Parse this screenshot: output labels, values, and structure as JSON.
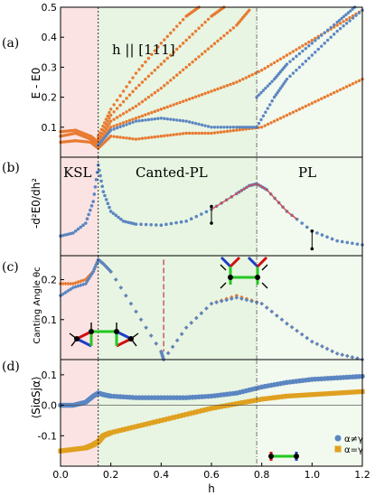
{
  "chart_data": [
    {
      "panel_label": "(a)",
      "type": "scatter",
      "ylabel": "E - E0",
      "annotation": "h || [111]",
      "xlim": [
        0,
        1.2
      ],
      "ylim": [
        0,
        0.5
      ],
      "yticks": [
        0.1,
        0.2,
        0.3,
        0.4,
        0.5
      ],
      "series": [
        {
          "color": "#e87a30",
          "branches": [
            {
              "x": [
                0,
                0.06,
                0.12,
                0.15,
                0.2,
                0.3,
                0.4,
                0.5,
                0.6,
                0.7,
                0.8,
                0.9,
                1.0,
                1.1,
                1.2
              ],
              "y": [
                0.05,
                0.055,
                0.05,
                0.03,
                0.07,
                0.06,
                0.07,
                0.08,
                0.08,
                0.09,
                0.1,
                0.14,
                0.18,
                0.22,
                0.26
              ]
            },
            {
              "x": [
                0,
                0.06,
                0.12,
                0.15,
                0.2,
                0.3,
                0.4,
                0.5,
                0.6,
                0.7,
                0.8,
                0.9,
                1.0,
                1.1,
                1.2
              ],
              "y": [
                0.07,
                0.08,
                0.06,
                0.04,
                0.1,
                0.13,
                0.16,
                0.19,
                0.22,
                0.25,
                0.29,
                0.34,
                0.39,
                0.44,
                0.49
              ]
            },
            {
              "x": [
                0,
                0.06,
                0.12,
                0.15,
                0.2,
                0.3,
                0.4,
                0.5,
                0.6,
                0.7,
                0.75
              ],
              "y": [
                0.085,
                0.09,
                0.07,
                0.05,
                0.12,
                0.17,
                0.23,
                0.3,
                0.37,
                0.44,
                0.49
              ]
            },
            {
              "x": [
                0.15,
                0.2,
                0.3,
                0.4,
                0.5,
                0.6,
                0.65
              ],
              "y": [
                0.06,
                0.14,
                0.23,
                0.31,
                0.39,
                0.47,
                0.5
              ]
            },
            {
              "x": [
                0.15,
                0.2,
                0.3,
                0.4,
                0.5,
                0.55
              ],
              "y": [
                0.07,
                0.16,
                0.28,
                0.38,
                0.47,
                0.5
              ]
            }
          ]
        },
        {
          "color": "#5b86c2",
          "branches": [
            {
              "x": [
                0.15,
                0.2,
                0.3,
                0.4,
                0.5,
                0.6,
                0.7,
                0.78,
                0.85,
                0.9,
                1.0,
                1.1,
                1.2
              ],
              "y": [
                0.04,
                0.09,
                0.12,
                0.13,
                0.12,
                0.1,
                0.1,
                0.1,
                0.2,
                0.26,
                0.34,
                0.42,
                0.49
              ]
            },
            {
              "x": [
                0.78,
                0.85,
                0.9,
                1.0,
                1.1,
                1.17
              ],
              "y": [
                0.2,
                0.26,
                0.31,
                0.38,
                0.45,
                0.5
              ]
            }
          ]
        }
      ]
    },
    {
      "panel_label": "(b)",
      "type": "line",
      "ylabel": "-d²E0/dh²",
      "xlim": [
        0,
        1.2
      ],
      "x": [
        0,
        0.05,
        0.1,
        0.13,
        0.15,
        0.17,
        0.2,
        0.25,
        0.3,
        0.4,
        0.5,
        0.6,
        0.7,
        0.75,
        0.78,
        0.82,
        0.9,
        1.0,
        1.1,
        1.2
      ],
      "y": [
        0.25,
        0.28,
        0.38,
        0.6,
        0.97,
        0.7,
        0.5,
        0.4,
        0.37,
        0.36,
        0.4,
        0.52,
        0.68,
        0.76,
        0.78,
        0.72,
        0.5,
        0.3,
        0.2,
        0.16
      ],
      "color": "#5b86c2",
      "fit_color": "#d94848"
    },
    {
      "panel_label": "(c)",
      "type": "scatter",
      "ylabel": "Canting Angle θc",
      "xlim": [
        0,
        1.2
      ],
      "ylim": [
        0,
        0.26
      ],
      "yticks": [
        0.1,
        0.2
      ],
      "series": [
        {
          "color": "#e87a30",
          "x": [
            0,
            0.05,
            0.1,
            0.13,
            0.15,
            0.17,
            0.2,
            0.3,
            0.4,
            0.41,
            0.5,
            0.6,
            0.7,
            0.8,
            0.9,
            1.0,
            1.1,
            1.2
          ],
          "y": [
            0.19,
            0.19,
            0.2,
            0.22,
            0.25,
            0.24,
            0.22,
            0.12,
            0.02,
            0.0,
            0.08,
            0.14,
            0.16,
            0.14,
            0.09,
            0.045,
            0.015,
            0.0
          ]
        },
        {
          "color": "#5b86c2",
          "x": [
            0,
            0.05,
            0.1,
            0.13,
            0.15,
            0.17,
            0.2,
            0.3,
            0.4,
            0.41,
            0.5,
            0.6,
            0.7,
            0.8,
            0.9,
            1.0,
            1.1,
            1.2
          ],
          "y": [
            0.16,
            0.18,
            0.19,
            0.22,
            0.25,
            0.24,
            0.22,
            0.12,
            0.02,
            0.0,
            0.08,
            0.14,
            0.155,
            0.14,
            0.09,
            0.045,
            0.015,
            0.0
          ]
        }
      ]
    },
    {
      "panel_label": "(d)",
      "type": "scatter",
      "ylabel": "⟨SiαSjα⟩",
      "xlabel": "h",
      "xlim": [
        0,
        1.2
      ],
      "ylim": [
        -0.2,
        0.15
      ],
      "yticks": [
        -0.1,
        0.0,
        0.1
      ],
      "xticks": [
        0.0,
        0.2,
        0.4,
        0.6,
        0.8,
        1.0,
        1.2
      ],
      "series": [
        {
          "name": "α≠γ",
          "color": "#5b86c2",
          "x": [
            0,
            0.05,
            0.1,
            0.13,
            0.15,
            0.17,
            0.2,
            0.3,
            0.4,
            0.5,
            0.6,
            0.7,
            0.8,
            0.9,
            1.0,
            1.1,
            1.2
          ],
          "y": [
            0.0,
            0.0,
            0.01,
            0.03,
            0.04,
            0.035,
            0.03,
            0.025,
            0.025,
            0.025,
            0.03,
            0.04,
            0.06,
            0.075,
            0.085,
            0.09,
            0.095
          ]
        },
        {
          "name": "α=γ",
          "color": "#e0a020",
          "x": [
            0,
            0.05,
            0.1,
            0.13,
            0.15,
            0.17,
            0.2,
            0.3,
            0.4,
            0.5,
            0.6,
            0.7,
            0.8,
            0.9,
            1.0,
            1.1,
            1.2
          ],
          "y": [
            -0.15,
            -0.145,
            -0.14,
            -0.13,
            -0.12,
            -0.1,
            -0.09,
            -0.07,
            -0.05,
            -0.03,
            -0.01,
            0.005,
            0.02,
            0.03,
            0.035,
            0.04,
            0.045
          ]
        }
      ]
    }
  ],
  "phases": {
    "labels": [
      "KSL",
      "Canted-PL",
      "PL"
    ],
    "boundaries": [
      0.15,
      0.78
    ],
    "colors": {
      "ksl": "#fbe3e3",
      "canted": "#e8f5e2",
      "pl": "#f2f9ee"
    }
  }
}
